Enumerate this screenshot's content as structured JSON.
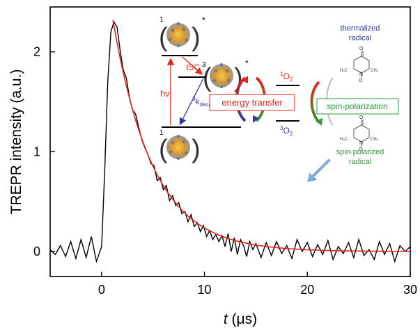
{
  "chart_data": {
    "type": "line",
    "xlabel_var": "t",
    "xlabel_unit": "(μs)",
    "ylabel": "TREPR intensity (a.u.)",
    "xlim": [
      -5,
      30
    ],
    "ylim": [
      -0.25,
      2.45
    ],
    "x_ticks": [
      0,
      10,
      20,
      30
    ],
    "x_tick_labels": [
      "0",
      "10",
      "20",
      "30"
    ],
    "y_ticks": [
      0,
      1,
      2
    ],
    "y_tick_labels": [
      "0",
      "1",
      "2"
    ],
    "grid": false,
    "series": [
      {
        "kind": "measured",
        "color": "#000000",
        "x": [
          -5,
          -4.5,
          -4,
          -3.5,
          -3,
          -2.5,
          -2,
          -1.5,
          -1,
          -0.5,
          0,
          0.3,
          0.6,
          0.9,
          1.2,
          1.5,
          1.8,
          2.1,
          2.4,
          2.7,
          3,
          3.3,
          3.6,
          3.9,
          4.2,
          4.5,
          4.8,
          5.1,
          5.4,
          5.7,
          6,
          6.3,
          6.6,
          6.9,
          7.2,
          7.5,
          7.8,
          8.1,
          8.4,
          8.7,
          9,
          9.3,
          9.6,
          9.9,
          10.2,
          10.5,
          10.8,
          11.1,
          11.4,
          11.7,
          12,
          12.3,
          12.6,
          12.9,
          13.2,
          13.5,
          13.8,
          14.1,
          14.4,
          14.7,
          15,
          15.5,
          16,
          16.5,
          17,
          17.5,
          18,
          18.5,
          19,
          19.5,
          20,
          20.5,
          21,
          21.5,
          22,
          22.5,
          23,
          23.5,
          24,
          24.5,
          25,
          25.5,
          26,
          26.5,
          27,
          27.5,
          28,
          28.5,
          29,
          29.5,
          30
        ],
        "y": [
          0.02,
          -0.03,
          0.06,
          -0.05,
          0.1,
          -0.07,
          0.12,
          -0.06,
          0.15,
          -0.1,
          0.05,
          0.8,
          1.7,
          2.2,
          2.3,
          2.25,
          2.02,
          1.82,
          1.74,
          1.55,
          1.42,
          1.38,
          1.25,
          1.12,
          1.04,
          0.97,
          0.88,
          0.86,
          0.71,
          0.74,
          0.62,
          0.66,
          0.51,
          0.56,
          0.46,
          0.49,
          0.38,
          0.4,
          0.3,
          0.37,
          0.25,
          0.29,
          0.2,
          0.26,
          0.15,
          0.21,
          0.12,
          0.17,
          0.1,
          0.16,
          0.05,
          0.18,
          0.0,
          0.14,
          -0.03,
          0.12,
          0.06,
          -0.05,
          0.1,
          0.02,
          0.08,
          -0.06,
          0.09,
          -0.04,
          0.1,
          -0.02,
          0.06,
          -0.07,
          0.12,
          0.0,
          0.09,
          -0.05,
          0.07,
          -0.03,
          0.11,
          -0.08,
          0.05,
          -0.02,
          0.09,
          -0.06,
          0.12,
          -0.04,
          0.02,
          -0.08,
          0.1,
          -0.03,
          0.08,
          -0.1,
          0.06,
          0.0,
          0.05
        ]
      },
      {
        "kind": "fit",
        "color": "#e8231d",
        "model": "exponential decay",
        "x_start": 1.1,
        "x_end": 30,
        "amplitude": 2.32,
        "tau_us": 3.9
      }
    ]
  },
  "inset": {
    "state_s1": "1",
    "state_t1": "3",
    "state_s0": "1",
    "star": "*",
    "isc": "ISC",
    "hv": "hν",
    "kdecay_prefix": "3",
    "kdecay_main": "k",
    "kdecay_sub": "decay",
    "o2_singlet_sup": "1",
    "o2_singlet_main": "O",
    "o2_singlet_sub": "2",
    "o2_triplet_sup": "3",
    "o2_triplet_main": "O",
    "o2_triplet_sub": "2",
    "energy_transfer": "energy transfer",
    "spin_polarization": "spin-polarization",
    "thermalized_line1": "thermalized",
    "thermalized_line2": "radical",
    "spinpol_line1": "spin-polarized",
    "spinpol_line2": "radical",
    "mol_o": "O",
    "mol_n": "N",
    "mol_o_bottom": "O",
    "mol_h3c": "H₃C",
    "mol_ch3": "CH₃",
    "colors": {
      "red": "#e8231d",
      "blue": "#2f3a9e",
      "green": "#2e9a3a",
      "cluster_gold": "#d9a520"
    }
  }
}
